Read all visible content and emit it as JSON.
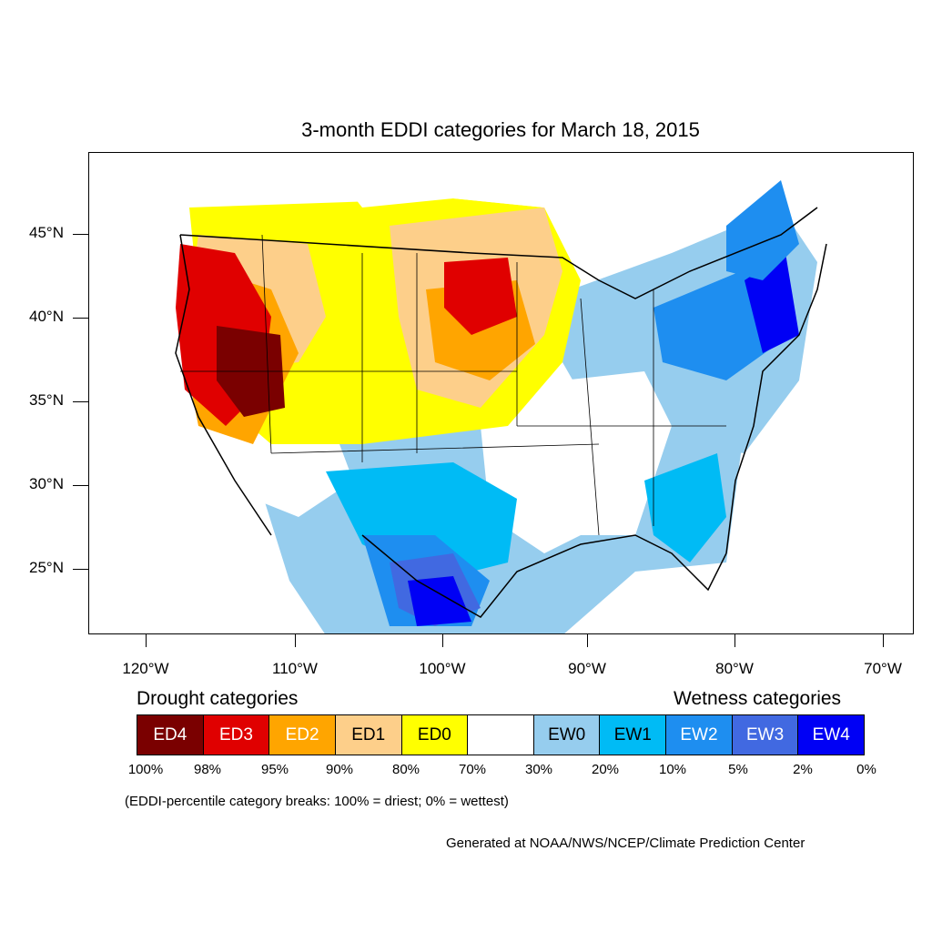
{
  "title": "3-month EDDI categories for March 18, 2015",
  "latitude_labels": [
    "45°N",
    "40°N",
    "35°N",
    "30°N",
    "25°N"
  ],
  "longitude_labels": [
    "120°W",
    "110°W",
    "100°W",
    "90°W",
    "80°W",
    "70°W"
  ],
  "legend": {
    "drought_heading": "Drought categories",
    "wetness_heading": "Wetness categories",
    "categories": [
      {
        "label": "ED4",
        "color": "#7a0000",
        "text_color": "#ffffff"
      },
      {
        "label": "ED3",
        "color": "#e00000",
        "text_color": "#ffffff"
      },
      {
        "label": "ED2",
        "color": "#ffa500",
        "text_color": "#ffffff"
      },
      {
        "label": "ED1",
        "color": "#fdcf8a",
        "text_color": "#000000"
      },
      {
        "label": "ED0",
        "color": "#ffff00",
        "text_color": "#000000"
      },
      {
        "label": "",
        "color": "#ffffff",
        "text_color": "#000000"
      },
      {
        "label": "EW0",
        "color": "#96cdee",
        "text_color": "#000000"
      },
      {
        "label": "EW1",
        "color": "#00bbf5",
        "text_color": "#000000"
      },
      {
        "label": "EW2",
        "color": "#1e8ef0",
        "text_color": "#ffffff"
      },
      {
        "label": "EW3",
        "color": "#4169e1",
        "text_color": "#ffffff"
      },
      {
        "label": "EW4",
        "color": "#0000f5",
        "text_color": "#ffffff"
      }
    ],
    "percentiles": [
      "100%",
      "98%",
      "95%",
      "90%",
      "80%",
      "70%",
      "30%",
      "20%",
      "10%",
      "5%",
      "2%",
      "0%"
    ]
  },
  "note": "(EDDI-percentile category breaks: 100% = driest; 0% = wettest)",
  "credit": "Generated at NOAA/NWS/NCEP/Climate Prediction Center"
}
